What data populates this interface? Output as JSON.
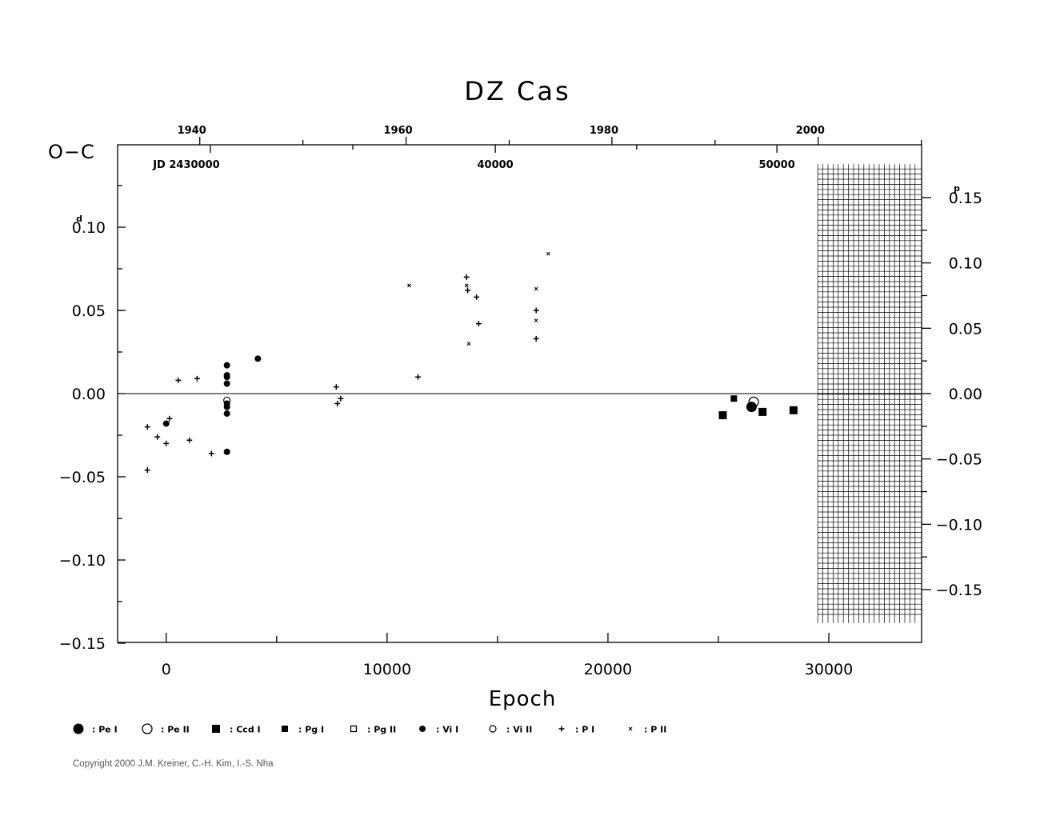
{
  "chart_data": {
    "type": "scatter",
    "title": "DZ Cas",
    "xlabel": "Epoch",
    "ylabel": "O−C",
    "y_unit_left": "d",
    "y_unit_right": "p",
    "xlim": [
      -2200,
      34200
    ],
    "ylim": [
      -0.15,
      0.15
    ],
    "x_ticks": [
      {
        "value": 0,
        "label": "0"
      },
      {
        "value": 10000,
        "label": "10000"
      },
      {
        "value": 20000,
        "label": "20000"
      },
      {
        "value": 30000,
        "label": "30000"
      }
    ],
    "y_ticks_left": [
      {
        "value": 0.1,
        "label": "0.10",
        "sup": "d"
      },
      {
        "value": 0.05,
        "label": "0.05"
      },
      {
        "value": 0.0,
        "label": "0.00"
      },
      {
        "value": -0.05,
        "label": "−0.05"
      },
      {
        "value": -0.1,
        "label": "−0.10"
      },
      {
        "value": -0.15,
        "label": "−0.15"
      }
    ],
    "y_ticks_right": [
      {
        "value": 0.15,
        "label": "0.15",
        "sup": "p"
      },
      {
        "value": 0.1,
        "label": "0.10"
      },
      {
        "value": 0.05,
        "label": "0.05"
      },
      {
        "value": 0.0,
        "label": "0.00"
      },
      {
        "value": -0.05,
        "label": "−0.05"
      },
      {
        "value": -0.1,
        "label": "−0.10"
      },
      {
        "value": -0.15,
        "label": "−0.15"
      }
    ],
    "right_scale_factor": 0.7854,
    "year_ticks": [
      {
        "epoch": 1520,
        "label": "1940"
      },
      {
        "epoch": 10860,
        "label": "1960"
      },
      {
        "epoch": 20180,
        "label": "1980"
      },
      {
        "epoch": 29520,
        "label": "2000"
      }
    ],
    "jd_ticks": [
      {
        "epoch": 2000,
        "label": "JD  2430000"
      },
      {
        "epoch": 14900,
        "label": "40000"
      },
      {
        "epoch": 27650,
        "label": "50000"
      }
    ],
    "future_region_start_epoch": 29500,
    "future_region_top": 0.135,
    "future_region_bottom": -0.135,
    "series": [
      {
        "name": "Pe I",
        "marker": "circle-filled-large",
        "points": [
          [
            26500,
            -0.008
          ]
        ]
      },
      {
        "name": "Pe II",
        "marker": "circle-open-large",
        "points": [
          [
            26600,
            -0.005
          ]
        ]
      },
      {
        "name": "Ccd I",
        "marker": "square-filled-large",
        "points": [
          [
            25200,
            -0.013
          ],
          [
            27000,
            -0.011
          ],
          [
            28400,
            -0.01
          ]
        ]
      },
      {
        "name": "Pg I",
        "marker": "square-filled-small",
        "points": [
          [
            25700,
            -0.003
          ]
        ]
      },
      {
        "name": "Pg II",
        "marker": "square-open-small",
        "points": []
      },
      {
        "name": "Vi I",
        "marker": "circle-filled-small",
        "points": [
          [
            0,
            -0.018
          ],
          [
            2750,
            0.017
          ],
          [
            2750,
            0.011
          ],
          [
            2750,
            0.01
          ],
          [
            2750,
            0.006
          ],
          [
            2750,
            -0.006
          ],
          [
            2750,
            -0.008
          ],
          [
            2750,
            -0.012
          ],
          [
            2750,
            -0.035
          ],
          [
            4150,
            0.021
          ]
        ]
      },
      {
        "name": "Vi II",
        "marker": "circle-open-small",
        "points": [
          [
            2750,
            -0.004
          ]
        ]
      },
      {
        "name": "P I",
        "marker": "plus",
        "points": [
          [
            -850,
            -0.02
          ],
          [
            -400,
            -0.026
          ],
          [
            0,
            -0.03
          ],
          [
            150,
            -0.015
          ],
          [
            550,
            0.008
          ],
          [
            1050,
            -0.028
          ],
          [
            1400,
            0.009
          ],
          [
            2050,
            -0.036
          ],
          [
            -850,
            -0.046
          ],
          [
            7700,
            0.004
          ],
          [
            7750,
            -0.006
          ],
          [
            7900,
            -0.003
          ],
          [
            11400,
            0.01
          ],
          [
            13600,
            0.07
          ],
          [
            13650,
            0.062
          ],
          [
            14050,
            0.058
          ],
          [
            14150,
            0.042
          ],
          [
            16750,
            0.033
          ],
          [
            16750,
            0.05
          ]
        ]
      },
      {
        "name": "P II",
        "marker": "x",
        "points": [
          [
            11000,
            0.065
          ],
          [
            13600,
            0.065
          ],
          [
            13700,
            0.03
          ],
          [
            16750,
            0.063
          ],
          [
            16750,
            0.044
          ],
          [
            17300,
            0.084
          ]
        ]
      }
    ],
    "legend": {
      "placement": "bottom",
      "items": [
        {
          "label": ": Pe I",
          "marker": "circle-filled-large"
        },
        {
          "label": ": Pe II",
          "marker": "circle-open-large"
        },
        {
          "label": ": Ccd I",
          "marker": "square-filled-large"
        },
        {
          "label": ": Pg I",
          "marker": "square-filled-small"
        },
        {
          "label": ": Pg II",
          "marker": "square-open-small"
        },
        {
          "label": ": Vi I",
          "marker": "circle-filled-small"
        },
        {
          "label": ": Vi II",
          "marker": "circle-open-small"
        },
        {
          "label": ": P I",
          "marker": "plus"
        },
        {
          "label": ": P II",
          "marker": "x"
        }
      ]
    },
    "zero_line": true,
    "grid": false
  },
  "footer": {
    "copyright": "Copyright 2000 J.M. Kreiner, C.-H. Kim, I.-S. Nha"
  },
  "colors": {
    "ink": "#000000",
    "copyright": "#555555",
    "background": "#ffffff"
  }
}
